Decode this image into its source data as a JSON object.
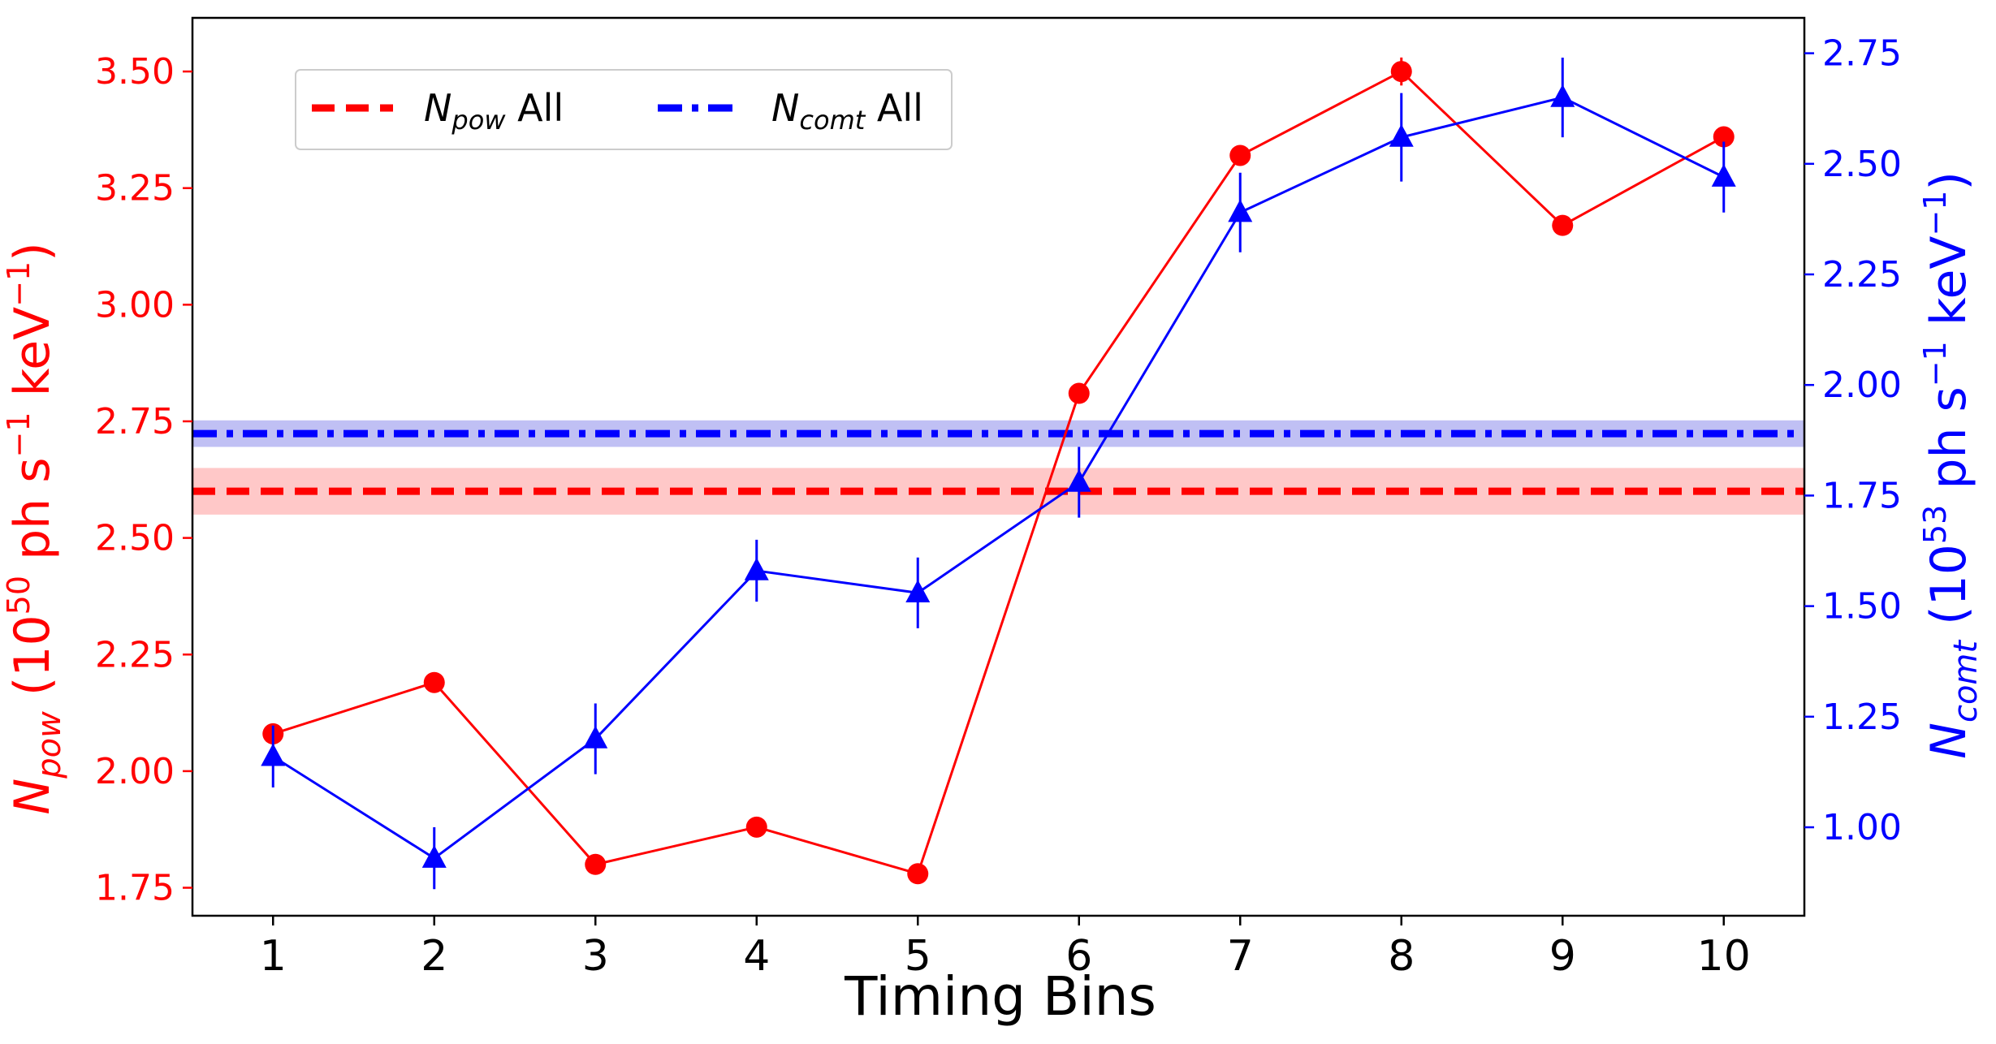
{
  "chart_data": {
    "type": "line",
    "xlabel": "Timing Bins",
    "x": [
      1,
      2,
      3,
      4,
      5,
      6,
      7,
      8,
      9,
      10
    ],
    "xlim": [
      0.5,
      10.5
    ],
    "left_axis": {
      "label_main": "N",
      "label_sub": "pow",
      "label_rest": " (10",
      "label_exp": "50",
      "label_unit1": " ph s",
      "label_exp2": "−1",
      "label_unit2": " keV",
      "label_exp3": "−1",
      "label_close": ")",
      "ylim": [
        1.69,
        3.615
      ],
      "ticks": [
        1.75,
        2.0,
        2.25,
        2.5,
        2.75,
        3.0,
        3.25,
        3.5
      ],
      "tick_labels": [
        "1.75",
        "2.00",
        "2.25",
        "2.50",
        "2.75",
        "3.00",
        "3.25",
        "3.50"
      ],
      "color": "#ff0000"
    },
    "right_axis": {
      "label_main": "N",
      "label_sub": "comt",
      "label_rest": " (10",
      "label_exp": "53",
      "label_unit1": " ph s",
      "label_exp2": "−1",
      "label_unit2": " keV",
      "label_exp3": "−1",
      "label_close": ")",
      "ylim": [
        0.8,
        2.83
      ],
      "ticks": [
        1.0,
        1.25,
        1.5,
        1.75,
        2.0,
        2.25,
        2.5,
        2.75
      ],
      "tick_labels": [
        "1.00",
        "1.25",
        "1.50",
        "1.75",
        "2.00",
        "2.25",
        "2.50",
        "2.75"
      ],
      "color": "#0000ff"
    },
    "series": [
      {
        "name": "N_pow",
        "axis": "left",
        "marker": "circle",
        "color": "#ff0000",
        "values": [
          2.08,
          2.19,
          1.8,
          1.88,
          1.78,
          2.81,
          3.32,
          3.5,
          3.17,
          3.36
        ],
        "errors": [
          0.02,
          0.02,
          0.02,
          0.02,
          0.02,
          0.02,
          0.02,
          0.03,
          0.02,
          0.02
        ]
      },
      {
        "name": "N_comt",
        "axis": "right",
        "marker": "triangle",
        "color": "#0000ff",
        "values": [
          1.16,
          0.93,
          1.2,
          1.58,
          1.53,
          1.78,
          2.39,
          2.56,
          2.65,
          2.47
        ],
        "errors": [
          0.07,
          0.07,
          0.08,
          0.07,
          0.08,
          0.08,
          0.09,
          0.1,
          0.09,
          0.08
        ]
      }
    ],
    "reference_lines": [
      {
        "name": "N_pow All",
        "axis": "left",
        "value": 2.6,
        "band": [
          2.55,
          2.65
        ],
        "style": "dashed",
        "color": "#ff0000",
        "band_color": "#ffc8c8"
      },
      {
        "name": "N_comt All",
        "axis": "right",
        "value": 1.89,
        "band": [
          1.86,
          1.92
        ],
        "style": "dashdot",
        "color": "#0000ff",
        "band_color": "#c0c0f4"
      }
    ],
    "legend": {
      "position": "top-left",
      "entries": [
        {
          "main": "N",
          "sub": "pow",
          "rest": " All"
        },
        {
          "main": "N",
          "sub": "comt",
          "rest": " All"
        }
      ]
    }
  }
}
